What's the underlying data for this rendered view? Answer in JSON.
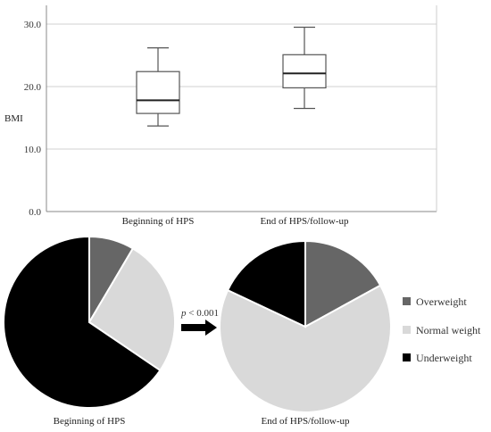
{
  "chart_data": [
    {
      "type": "box",
      "ylabel": "BMI",
      "ylim": [
        0,
        33
      ],
      "ytick_labels": [
        "0.0",
        "10.0",
        "20.0",
        "30.0"
      ],
      "yticks": [
        0,
        10,
        20,
        30
      ],
      "grid": true,
      "categories": [
        "Beginning of HPS",
        "End of HPS/follow-up"
      ],
      "boxes": [
        {
          "whisker_low": 13.7,
          "q1": 15.7,
          "median": 17.8,
          "q3": 22.4,
          "whisker_high": 26.2
        },
        {
          "whisker_low": 16.5,
          "q1": 19.8,
          "median": 22.1,
          "q3": 25.1,
          "whisker_high": 29.5
        }
      ]
    },
    {
      "type": "pie",
      "title": "Beginning of HPS",
      "labels": [
        "Overweight",
        "Normal weight",
        "Underweight"
      ],
      "values": [
        8.5,
        26.0,
        65.5
      ]
    },
    {
      "type": "pie",
      "title": "End of HPS/follow-up",
      "labels": [
        "Overweight",
        "Normal weight",
        "Underweight"
      ],
      "values": [
        17.0,
        65.0,
        18.0
      ]
    }
  ],
  "annotation": {
    "p_letter": "p",
    "p_rest": " < 0.001"
  },
  "legend": {
    "items": [
      {
        "label": "Overweight",
        "color": "#666666"
      },
      {
        "label": "Normal weight",
        "color": "#d9d9d9"
      },
      {
        "label": "Underweight",
        "color": "#000000"
      }
    ]
  },
  "colors": {
    "overweight": "#666666",
    "normal": "#d9d9d9",
    "underweight": "#000000",
    "box_fill": "#ffffff",
    "box_stroke": "#555555",
    "grid": "#d0d0d0"
  }
}
